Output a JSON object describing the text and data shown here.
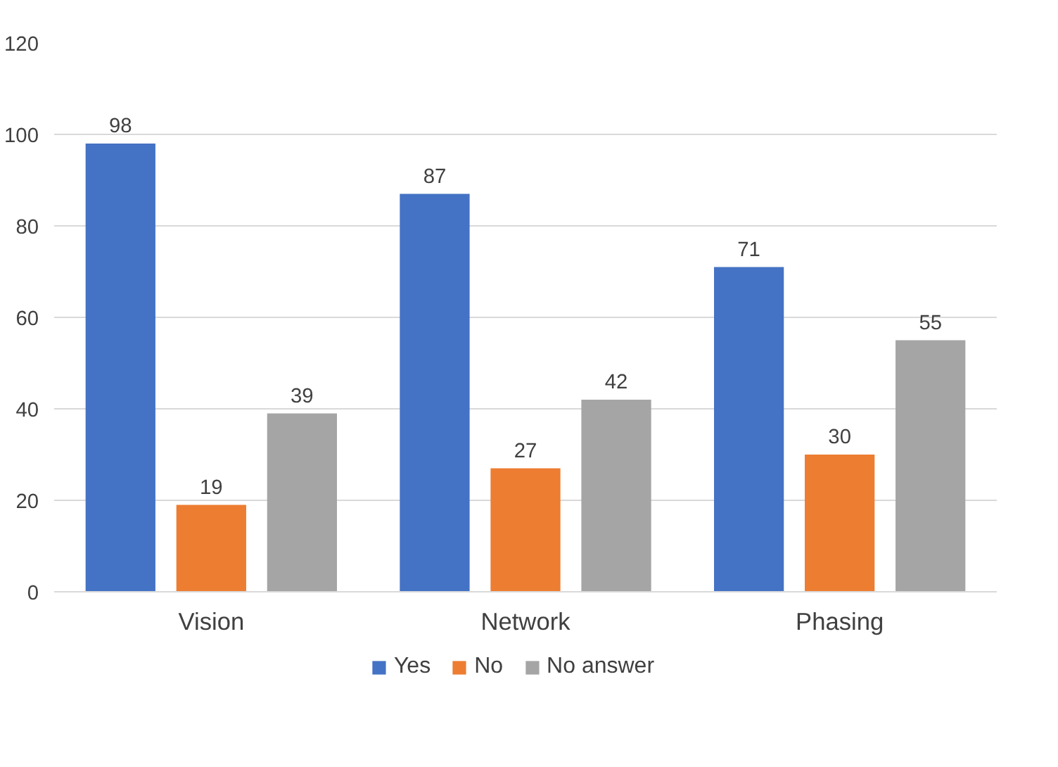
{
  "chart_data": {
    "type": "bar",
    "categories": [
      "Vision",
      "Network",
      "Phasing"
    ],
    "series": [
      {
        "name": "Yes",
        "color": "#4472c4",
        "values": [
          98,
          87,
          71
        ]
      },
      {
        "name": "No",
        "color": "#ed7d31",
        "values": [
          19,
          27,
          30
        ]
      },
      {
        "name": "No answer",
        "color": "#a5a5a5",
        "values": [
          39,
          42,
          55
        ]
      }
    ],
    "ylim": [
      0,
      120
    ],
    "yticks": [
      0,
      20,
      40,
      60,
      80,
      100,
      120
    ],
    "grid": "y",
    "legend": "bottom",
    "data_labels": true
  }
}
